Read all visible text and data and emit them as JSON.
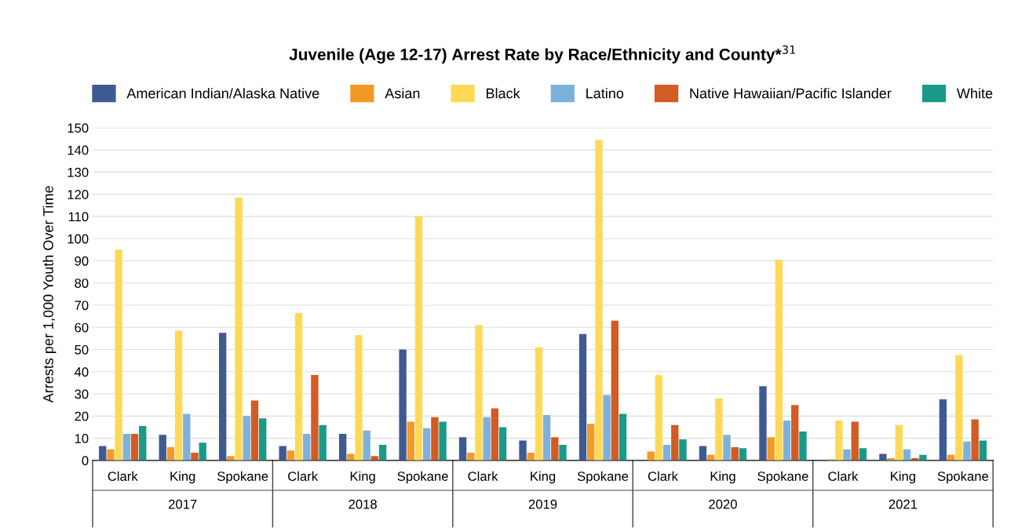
{
  "chart_data": {
    "type": "bar",
    "title": "Juvenile (Age 12-17) Arrest Rate by Race/Ethnicity and County*$^{31}$",
    "ylabel": "Arrests per 1,000 Youth Over Time",
    "categories": [
      "Clark",
      "King",
      "Spokane",
      "Clark",
      "King",
      "Spokane",
      "Clark",
      "King",
      "Spokane",
      "Clark",
      "King",
      "Spokane",
      "Clark",
      "King",
      "Spokane"
    ],
    "annotations": [
      "2017",
      "2018",
      "2019",
      "2020",
      "2021"
    ],
    "series": [
      {
        "name": "American Indian/Alaska Native",
        "color": "#3f5a91",
        "values": [
          6.5,
          11.5,
          57.5,
          6.5,
          12,
          50,
          10.5,
          9,
          57,
          null,
          6.5,
          33.5,
          null,
          3,
          27.5
        ]
      },
      {
        "name": "Asian",
        "color": "#f39a26",
        "values": [
          5,
          6,
          2,
          4.5,
          3,
          17.5,
          3.5,
          3.5,
          16.5,
          4,
          2.5,
          10.5,
          0.5,
          1,
          2.5
        ]
      },
      {
        "name": "Black",
        "color": "#ffd955",
        "values": [
          95,
          58.5,
          118.5,
          66.5,
          56.5,
          110,
          61,
          51,
          144.5,
          38.5,
          28,
          90.5,
          18,
          16,
          47.5
        ]
      },
      {
        "name": "Latino",
        "color": "#7eb0dc",
        "values": [
          12,
          21,
          20,
          12,
          13.5,
          14.5,
          19.5,
          20.5,
          29.5,
          7,
          11.5,
          18,
          5,
          5,
          8.5
        ]
      },
      {
        "name": "Native Hawaiian/Pacific Islander",
        "color": "#d35b24",
        "values": [
          12,
          3.5,
          27,
          38.5,
          2,
          19.5,
          23.5,
          10.5,
          63,
          16,
          6,
          25,
          17.5,
          1,
          18.5
        ]
      },
      {
        "name": "White",
        "color": "#1a9a88",
        "values": [
          15.5,
          8,
          19,
          16,
          7,
          17.5,
          15,
          7,
          21,
          9.5,
          5.5,
          13,
          5.5,
          2.5,
          9
        ]
      }
    ],
    "ylim": [
      0,
      150
    ],
    "yticks": [
      0,
      10,
      20,
      30,
      40,
      50,
      60,
      70,
      80,
      90,
      100,
      110,
      120,
      130,
      140,
      150
    ],
    "grid": "y",
    "legend": "top"
  }
}
